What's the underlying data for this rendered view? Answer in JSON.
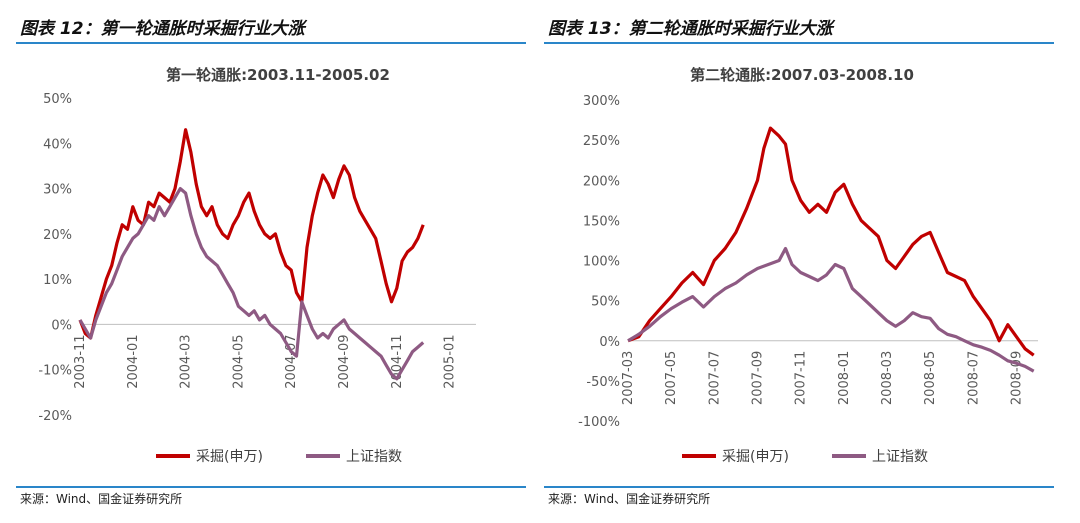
{
  "figures": [
    {
      "label": "图表 12：第一轮通胀时采掘行业大涨",
      "source": "来源：Wind、国金证券研究所"
    },
    {
      "label": "图表 13：第二轮通胀时采掘行业大涨",
      "source": "来源：Wind、国金证券研究所"
    }
  ],
  "chart_data": [
    {
      "type": "line",
      "title": "第一轮通胀:2003.11-2005.02",
      "xlabel": "",
      "ylabel": "",
      "ylim": [
        -20,
        50
      ],
      "y_ticks": [
        "50%",
        "40%",
        "30%",
        "20%",
        "10%",
        "0%",
        "-10%",
        "-20%"
      ],
      "x_ticks": [
        "2003-11",
        "2004-01",
        "2004-03",
        "2004-05",
        "2004-07",
        "2004-09",
        "2004-11",
        "2005-01"
      ],
      "x": [
        "2003-11",
        "2003-12",
        "2004-01",
        "2004-02",
        "2004-03",
        "2004-04",
        "2004-05",
        "2004-06",
        "2004-07",
        "2004-08",
        "2004-09",
        "2004-10",
        "2004-11",
        "2004-12",
        "2005-01",
        "2005-02"
      ],
      "legend_position": "bottom",
      "colors": {
        "采掘(申万)": "#c00000",
        "上证指数": "#8e5a83"
      },
      "series": [
        {
          "name": "采掘(申万)",
          "points": [
            [
              0,
              1
            ],
            [
              0.2,
              -2
            ],
            [
              0.4,
              -3
            ],
            [
              0.6,
              2
            ],
            [
              0.8,
              6
            ],
            [
              1.0,
              10
            ],
            [
              1.2,
              13
            ],
            [
              1.4,
              18
            ],
            [
              1.6,
              22
            ],
            [
              1.8,
              21
            ],
            [
              2.0,
              26
            ],
            [
              2.2,
              23
            ],
            [
              2.4,
              22
            ],
            [
              2.6,
              27
            ],
            [
              2.8,
              26
            ],
            [
              3.0,
              29
            ],
            [
              3.2,
              28
            ],
            [
              3.4,
              27
            ],
            [
              3.6,
              30
            ],
            [
              3.8,
              36
            ],
            [
              4.0,
              43
            ],
            [
              4.2,
              38
            ],
            [
              4.4,
              31
            ],
            [
              4.6,
              26
            ],
            [
              4.8,
              24
            ],
            [
              5.0,
              26
            ],
            [
              5.2,
              22
            ],
            [
              5.4,
              20
            ],
            [
              5.6,
              19
            ],
            [
              5.8,
              22
            ],
            [
              6.0,
              24
            ],
            [
              6.2,
              27
            ],
            [
              6.4,
              29
            ],
            [
              6.6,
              25
            ],
            [
              6.8,
              22
            ],
            [
              7.0,
              20
            ],
            [
              7.2,
              19
            ],
            [
              7.4,
              20
            ],
            [
              7.6,
              16
            ],
            [
              7.8,
              13
            ],
            [
              8.0,
              12
            ],
            [
              8.2,
              7
            ],
            [
              8.4,
              5
            ],
            [
              8.6,
              17
            ],
            [
              8.8,
              24
            ],
            [
              9.0,
              29
            ],
            [
              9.2,
              33
            ],
            [
              9.4,
              31
            ],
            [
              9.6,
              28
            ],
            [
              9.8,
              32
            ],
            [
              10.0,
              35
            ],
            [
              10.2,
              33
            ],
            [
              10.4,
              28
            ],
            [
              10.6,
              25
            ],
            [
              10.8,
              23
            ],
            [
              11.0,
              21
            ],
            [
              11.2,
              19
            ],
            [
              11.4,
              14
            ],
            [
              11.6,
              9
            ],
            [
              11.8,
              5
            ],
            [
              12.0,
              8
            ],
            [
              12.2,
              14
            ],
            [
              12.4,
              16
            ],
            [
              12.6,
              17
            ],
            [
              12.8,
              19
            ],
            [
              13.0,
              22
            ]
          ]
        },
        {
          "name": "上证指数",
          "points": [
            [
              0,
              1
            ],
            [
              0.2,
              -1
            ],
            [
              0.4,
              -3
            ],
            [
              0.6,
              1
            ],
            [
              0.8,
              4
            ],
            [
              1.0,
              7
            ],
            [
              1.2,
              9
            ],
            [
              1.4,
              12
            ],
            [
              1.6,
              15
            ],
            [
              1.8,
              17
            ],
            [
              2.0,
              19
            ],
            [
              2.2,
              20
            ],
            [
              2.4,
              22
            ],
            [
              2.6,
              24
            ],
            [
              2.8,
              23
            ],
            [
              3.0,
              26
            ],
            [
              3.2,
              24
            ],
            [
              3.4,
              26
            ],
            [
              3.6,
              28
            ],
            [
              3.8,
              30
            ],
            [
              4.0,
              29
            ],
            [
              4.2,
              24
            ],
            [
              4.4,
              20
            ],
            [
              4.6,
              17
            ],
            [
              4.8,
              15
            ],
            [
              5.0,
              14
            ],
            [
              5.2,
              13
            ],
            [
              5.4,
              11
            ],
            [
              5.6,
              9
            ],
            [
              5.8,
              7
            ],
            [
              6.0,
              4
            ],
            [
              6.2,
              3
            ],
            [
              6.4,
              2
            ],
            [
              6.6,
              3
            ],
            [
              6.8,
              1
            ],
            [
              7.0,
              2
            ],
            [
              7.2,
              0
            ],
            [
              7.4,
              -1
            ],
            [
              7.6,
              -2
            ],
            [
              7.8,
              -4
            ],
            [
              8.0,
              -6
            ],
            [
              8.2,
              -7
            ],
            [
              8.4,
              5
            ],
            [
              8.6,
              2
            ],
            [
              8.8,
              -1
            ],
            [
              9.0,
              -3
            ],
            [
              9.2,
              -2
            ],
            [
              9.4,
              -3
            ],
            [
              9.6,
              -1
            ],
            [
              9.8,
              0
            ],
            [
              10.0,
              1
            ],
            [
              10.2,
              -1
            ],
            [
              10.4,
              -2
            ],
            [
              10.6,
              -3
            ],
            [
              10.8,
              -4
            ],
            [
              11.0,
              -5
            ],
            [
              11.2,
              -6
            ],
            [
              11.4,
              -7
            ],
            [
              11.6,
              -9
            ],
            [
              11.8,
              -11
            ],
            [
              12.0,
              -12
            ],
            [
              12.2,
              -10
            ],
            [
              12.4,
              -8
            ],
            [
              12.6,
              -6
            ],
            [
              12.8,
              -5
            ],
            [
              13.0,
              -4
            ]
          ]
        }
      ]
    },
    {
      "type": "line",
      "title": "第二轮通胀:2007.03-2008.10",
      "xlabel": "",
      "ylabel": "",
      "ylim": [
        -100,
        300
      ],
      "y_ticks": [
        "300%",
        "250%",
        "200%",
        "150%",
        "100%",
        "50%",
        "0%",
        "-50%",
        "-100%"
      ],
      "x_ticks": [
        "2007-03",
        "2007-05",
        "2007-07",
        "2007-09",
        "2007-11",
        "2008-01",
        "2008-03",
        "2008-05",
        "2008-07",
        "2008-09"
      ],
      "x": [
        "2007-03",
        "2007-04",
        "2007-05",
        "2007-06",
        "2007-07",
        "2007-08",
        "2007-09",
        "2007-10",
        "2007-11",
        "2007-12",
        "2008-01",
        "2008-02",
        "2008-03",
        "2008-04",
        "2008-05",
        "2008-06",
        "2008-07",
        "2008-08",
        "2008-09",
        "2008-10"
      ],
      "legend_position": "bottom",
      "colors": {
        "采掘(申万)": "#c00000",
        "上证指数": "#8e5a83"
      },
      "series": [
        {
          "name": "采掘(申万)",
          "points": [
            [
              0,
              0
            ],
            [
              0.5,
              5
            ],
            [
              1.0,
              25
            ],
            [
              1.5,
              40
            ],
            [
              2.0,
              55
            ],
            [
              2.5,
              72
            ],
            [
              3.0,
              85
            ],
            [
              3.5,
              70
            ],
            [
              4.0,
              100
            ],
            [
              4.5,
              115
            ],
            [
              5.0,
              135
            ],
            [
              5.5,
              165
            ],
            [
              6.0,
              200
            ],
            [
              6.3,
              240
            ],
            [
              6.6,
              265
            ],
            [
              7.0,
              255
            ],
            [
              7.3,
              245
            ],
            [
              7.6,
              200
            ],
            [
              8.0,
              175
            ],
            [
              8.4,
              160
            ],
            [
              8.8,
              170
            ],
            [
              9.2,
              160
            ],
            [
              9.6,
              185
            ],
            [
              10.0,
              195
            ],
            [
              10.4,
              170
            ],
            [
              10.8,
              150
            ],
            [
              11.2,
              140
            ],
            [
              11.6,
              130
            ],
            [
              12.0,
              100
            ],
            [
              12.4,
              90
            ],
            [
              12.8,
              105
            ],
            [
              13.2,
              120
            ],
            [
              13.6,
              130
            ],
            [
              14.0,
              135
            ],
            [
              14.4,
              110
            ],
            [
              14.8,
              85
            ],
            [
              15.2,
              80
            ],
            [
              15.6,
              75
            ],
            [
              16.0,
              55
            ],
            [
              16.4,
              40
            ],
            [
              16.8,
              25
            ],
            [
              17.2,
              0
            ],
            [
              17.6,
              20
            ],
            [
              18.0,
              5
            ],
            [
              18.4,
              -10
            ],
            [
              18.8,
              -18
            ]
          ]
        },
        {
          "name": "上证指数",
          "points": [
            [
              0,
              0
            ],
            [
              0.5,
              8
            ],
            [
              1.0,
              18
            ],
            [
              1.5,
              30
            ],
            [
              2.0,
              40
            ],
            [
              2.5,
              48
            ],
            [
              3.0,
              55
            ],
            [
              3.5,
              42
            ],
            [
              4.0,
              55
            ],
            [
              4.5,
              65
            ],
            [
              5.0,
              72
            ],
            [
              5.5,
              82
            ],
            [
              6.0,
              90
            ],
            [
              6.5,
              95
            ],
            [
              7.0,
              100
            ],
            [
              7.3,
              115
            ],
            [
              7.6,
              95
            ],
            [
              8.0,
              85
            ],
            [
              8.4,
              80
            ],
            [
              8.8,
              75
            ],
            [
              9.2,
              82
            ],
            [
              9.6,
              95
            ],
            [
              10.0,
              90
            ],
            [
              10.4,
              65
            ],
            [
              10.8,
              55
            ],
            [
              11.2,
              45
            ],
            [
              11.6,
              35
            ],
            [
              12.0,
              25
            ],
            [
              12.4,
              18
            ],
            [
              12.8,
              25
            ],
            [
              13.2,
              35
            ],
            [
              13.6,
              30
            ],
            [
              14.0,
              28
            ],
            [
              14.4,
              15
            ],
            [
              14.8,
              8
            ],
            [
              15.2,
              5
            ],
            [
              15.6,
              0
            ],
            [
              16.0,
              -5
            ],
            [
              16.4,
              -8
            ],
            [
              16.8,
              -12
            ],
            [
              17.2,
              -18
            ],
            [
              17.6,
              -25
            ],
            [
              18.0,
              -28
            ],
            [
              18.4,
              -32
            ],
            [
              18.8,
              -38
            ]
          ]
        }
      ]
    }
  ]
}
